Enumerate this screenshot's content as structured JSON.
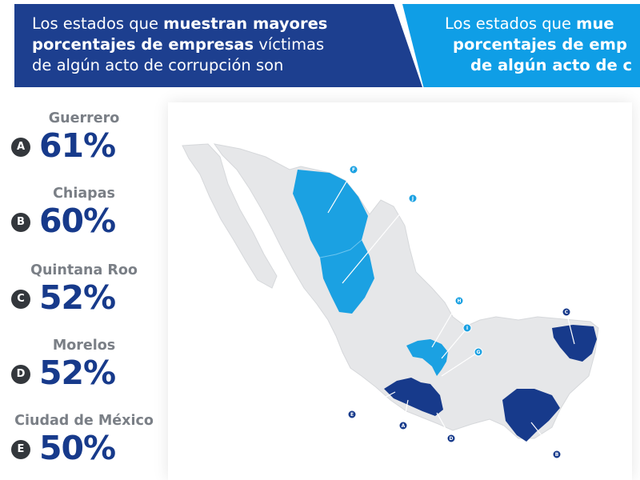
{
  "header": {
    "left": {
      "line1_normal": "Los estados que ",
      "line1_bold": "muestran mayores",
      "line2_bold": "porcentajes de empresas",
      "line2_normal": " víctimas",
      "line3_normal": "de algún acto de corrupción son"
    },
    "right": {
      "line1_normal": "Los estados que ",
      "line1_bold": "mue",
      "line2_bold": "porcentajes de emp",
      "line3_bold": "de algún acto de c"
    }
  },
  "ranking": [
    {
      "letter": "A",
      "state": "Guerrero",
      "percent": "61%"
    },
    {
      "letter": "B",
      "state": "Chiapas",
      "percent": "60%"
    },
    {
      "letter": "C",
      "state": "Quintana Roo",
      "percent": "52%"
    },
    {
      "letter": "D",
      "state": "Morelos",
      "percent": "52%"
    },
    {
      "letter": "E",
      "state": "Ciudad de México",
      "percent": "50%"
    }
  ],
  "map": {
    "pins": [
      "F",
      "J",
      "H",
      "I",
      "G",
      "C",
      "E",
      "A",
      "D",
      "B"
    ],
    "colors": {
      "land": "#e6e7e9",
      "dark_states": "#173a8b",
      "light_states": "#1ba1e2",
      "pin_dark": "#173a8b",
      "pin_light": "#1ba1e2"
    }
  }
}
